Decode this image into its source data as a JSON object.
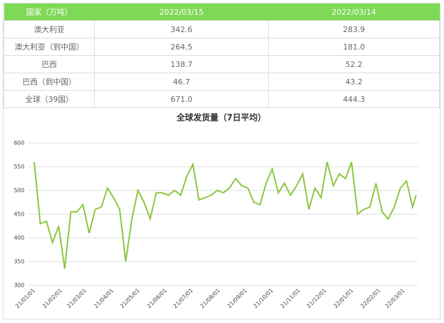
{
  "table": {
    "header": [
      "国家（万吨）",
      "2022/03/15",
      "2022/03/14"
    ],
    "rows": [
      [
        "澳大利亚",
        "342.6",
        "283.9"
      ],
      [
        "澳大利亚（到中国）",
        "264.5",
        "181.0"
      ],
      [
        "巴西",
        "138.7",
        "52.2"
      ],
      [
        "巴西（到中国）",
        "46.7",
        "43.2"
      ],
      [
        "全球（39国）",
        "671.0",
        "444.3"
      ]
    ]
  },
  "chart_data": {
    "type": "line",
    "title": "全球发货量（7日平均）",
    "x": [
      "21/01/01",
      "21/01/08",
      "21/01/15",
      "21/01/22",
      "21/01/29",
      "21/02/05",
      "21/02/12",
      "21/02/19",
      "21/02/26",
      "21/03/05",
      "21/03/12",
      "21/03/19",
      "21/03/26",
      "21/04/02",
      "21/04/09",
      "21/04/16",
      "21/04/23",
      "21/04/30",
      "21/05/07",
      "21/05/14",
      "21/05/21",
      "21/05/28",
      "21/06/04",
      "21/06/11",
      "21/06/18",
      "21/06/25",
      "21/07/02",
      "21/07/09",
      "21/07/16",
      "21/07/23",
      "21/07/30",
      "21/08/06",
      "21/08/13",
      "21/08/20",
      "21/08/27",
      "21/09/03",
      "21/09/10",
      "21/09/17",
      "21/09/24",
      "21/10/01",
      "21/10/08",
      "21/10/15",
      "21/10/22",
      "21/10/29",
      "21/11/05",
      "21/11/12",
      "21/11/19",
      "21/11/26",
      "21/12/03",
      "21/12/10",
      "21/12/17",
      "21/12/24",
      "21/12/31",
      "22/01/07",
      "22/01/14",
      "22/01/21",
      "22/01/28",
      "22/02/04",
      "22/02/11",
      "22/02/18",
      "22/02/25",
      "22/03/04",
      "22/03/11",
      "22/03/15"
    ],
    "series": [
      {
        "color": "#8cc63f",
        "values": [
          560,
          430,
          435,
          390,
          425,
          335,
          455,
          455,
          470,
          410,
          460,
          465,
          505,
          485,
          460,
          350,
          440,
          500,
          475,
          440,
          495,
          495,
          490,
          500,
          490,
          530,
          555,
          480,
          485,
          490,
          500,
          495,
          505,
          525,
          510,
          505,
          475,
          470,
          515,
          545,
          495,
          515,
          490,
          510,
          535,
          460,
          505,
          485,
          560,
          510,
          535,
          525,
          560,
          450,
          460,
          465,
          515,
          455,
          440,
          465,
          505,
          520,
          465,
          490
        ]
      }
    ],
    "xlim": [
      "21/01/01",
      "22/03/15"
    ],
    "xticks": [
      "21/01/01",
      "21/02/01",
      "21/03/01",
      "21/04/01",
      "21/05/01",
      "21/06/01",
      "21/07/01",
      "21/08/01",
      "21/09/01",
      "21/10/01",
      "21/11/01",
      "21/12/01",
      "22/01/01",
      "22/02/01",
      "22/03/01"
    ],
    "ylim": [
      300,
      600
    ],
    "yticks": [
      300,
      350,
      400,
      450,
      500,
      550,
      600
    ],
    "grid": true
  }
}
